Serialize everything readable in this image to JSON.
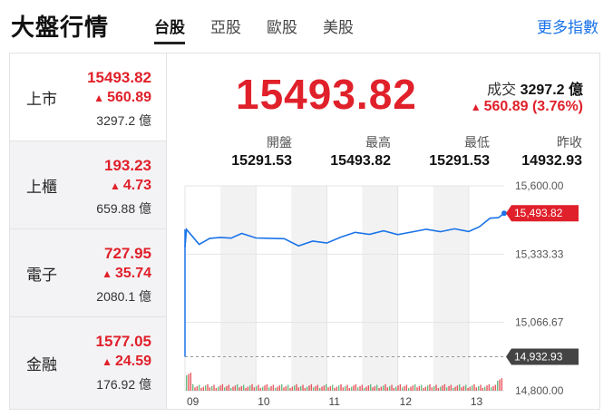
{
  "header": {
    "title": "大盤行情",
    "tabs": [
      "台股",
      "亞股",
      "歐股",
      "美股"
    ],
    "more_label": "更多指數"
  },
  "sidebar": {
    "items": [
      {
        "name": "上市",
        "price": "15493.82",
        "change": "560.89",
        "volume": "3297.2 億"
      },
      {
        "name": "上櫃",
        "price": "193.23",
        "change": "4.73",
        "volume": "659.88 億"
      },
      {
        "name": "電子",
        "price": "727.95",
        "change": "35.74",
        "volume": "2080.1 億"
      },
      {
        "name": "金融",
        "price": "1577.05",
        "change": "24.59",
        "volume": "176.92 億"
      }
    ]
  },
  "main": {
    "price": "15493.82",
    "volume_label": "成交",
    "volume_value": "3297.2 億",
    "change": "560.89 (3.76%)",
    "stats": [
      {
        "label": "開盤",
        "value": "15291.53"
      },
      {
        "label": "最高",
        "value": "15493.82"
      },
      {
        "label": "最低",
        "value": "15291.53"
      },
      {
        "label": "昨收",
        "value": "14932.93"
      }
    ]
  },
  "chart_data": {
    "type": "line",
    "x_tick_labels": [
      "09",
      "10",
      "11",
      "12",
      "13"
    ],
    "y_tick_labels": [
      "15,600.00",
      "15,333.33",
      "15,066.67",
      "14,800.00"
    ],
    "ylim": [
      14800,
      15600
    ],
    "current_label": "15,493.82",
    "prev_close_label": "14,932.93",
    "colors": {
      "line": "#1a73e8",
      "up": "#e0202a",
      "prev": "#444444"
    },
    "series": [
      {
        "x": [
          9.0,
          9.02,
          9.1,
          9.2,
          9.35,
          9.5,
          9.65,
          9.8,
          10.0,
          10.2,
          10.4,
          10.6,
          10.8,
          11.0,
          11.2,
          11.4,
          11.6,
          11.8,
          12.0,
          12.2,
          12.4,
          12.6,
          12.8,
          13.0,
          13.15,
          13.3,
          13.42,
          13.5
        ],
        "values": [
          15360,
          15430,
          15400,
          15380,
          15395,
          15390,
          15400,
          15410,
          15405,
          15395,
          15385,
          15370,
          15380,
          15385,
          15400,
          15410,
          15415,
          15420,
          15418,
          15420,
          15422,
          15425,
          15428,
          15430,
          15440,
          15465,
          15480,
          15493
        ]
      }
    ]
  }
}
